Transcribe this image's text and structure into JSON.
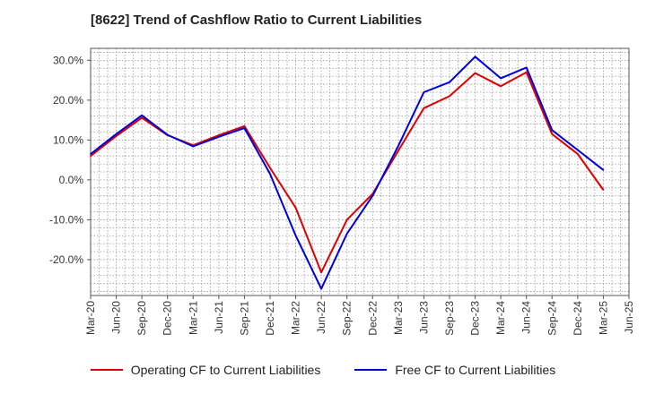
{
  "chart_data": {
    "type": "line",
    "title": "[8622]  Trend of Cashflow Ratio to Current Liabilities",
    "xlabel": "",
    "ylabel": "",
    "x": [
      "Mar-20",
      "Jun-20",
      "Sep-20",
      "Dec-20",
      "Mar-21",
      "Jun-21",
      "Sep-21",
      "Dec-21",
      "Mar-22",
      "Jun-22",
      "Sep-22",
      "Dec-22",
      "Mar-23",
      "Jun-23",
      "Sep-23",
      "Dec-23",
      "Mar-24",
      "Jun-24",
      "Sep-24",
      "Dec-24",
      "Mar-25"
    ],
    "x_ticks": [
      "Mar-20",
      "Jun-20",
      "Sep-20",
      "Dec-20",
      "Mar-21",
      "Jun-21",
      "Sep-21",
      "Dec-21",
      "Mar-22",
      "Jun-22",
      "Sep-22",
      "Dec-22",
      "Mar-23",
      "Jun-23",
      "Sep-23",
      "Dec-23",
      "Mar-24",
      "Jun-24",
      "Sep-24",
      "Dec-24",
      "Mar-25",
      "Jun-25"
    ],
    "y_ticks": [
      "30.0%",
      "20.0%",
      "10.0%",
      "0.0%",
      "-10.0%",
      "-20.0%"
    ],
    "y_tick_values": [
      30,
      20,
      10,
      0,
      -10,
      -20
    ],
    "ylim": [
      -29,
      33
    ],
    "grid": true,
    "legend_position": "bottom",
    "series": [
      {
        "name": "Operating CF to Current Liabilities",
        "color": "#e00000",
        "values": [
          [
            0,
            6.0
          ],
          [
            1,
            11.0
          ],
          [
            2,
            15.6
          ],
          [
            3,
            11.2
          ],
          [
            4,
            8.7
          ],
          [
            5,
            11.2
          ],
          [
            6,
            13.5
          ],
          [
            7,
            3.0
          ],
          [
            8,
            -7.0
          ],
          [
            9,
            -23.2
          ],
          [
            10,
            -10.0
          ],
          [
            11,
            -3.5
          ],
          [
            12,
            7.3
          ],
          [
            13,
            18.0
          ],
          [
            14,
            21.0
          ],
          [
            15,
            26.8
          ],
          [
            16,
            23.5
          ],
          [
            17,
            27.0
          ],
          [
            18,
            11.5
          ],
          [
            19,
            6.5
          ],
          [
            20,
            -2.5
          ]
        ]
      },
      {
        "name": "Free CF to Current Liabilities",
        "color": "#0000dd",
        "values": [
          [
            0,
            6.5
          ],
          [
            1,
            11.5
          ],
          [
            2,
            16.2
          ],
          [
            3,
            11.3
          ],
          [
            4,
            8.4
          ],
          [
            5,
            10.8
          ],
          [
            6,
            13.0
          ],
          [
            7,
            1.5
          ],
          [
            8,
            -14.0
          ],
          [
            9,
            -27.3
          ],
          [
            10,
            -13.5
          ],
          [
            11,
            -4.0
          ],
          [
            12,
            8.5
          ],
          [
            13,
            22.0
          ],
          [
            14,
            24.5
          ],
          [
            15,
            30.9
          ],
          [
            16,
            25.5
          ],
          [
            17,
            28.2
          ],
          [
            18,
            12.5
          ],
          [
            19,
            7.5
          ],
          [
            20,
            2.5
          ]
        ]
      }
    ]
  }
}
